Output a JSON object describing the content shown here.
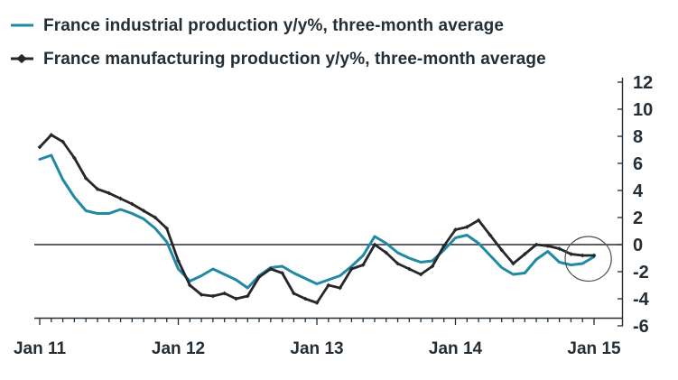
{
  "legend": {
    "items": [
      {
        "label": "France industrial production y/y%, three-month average",
        "color": "#2089a3",
        "marker": "line"
      },
      {
        "label": "France manufacturing production y/y%, three-month average",
        "color": "#26262b",
        "marker": "line-diamond"
      }
    ]
  },
  "chart_data": {
    "type": "line",
    "title": "",
    "xlabel": "",
    "ylabel": "",
    "frequency": "monthly",
    "x": [
      "2011-01",
      "2011-02",
      "2011-03",
      "2011-04",
      "2011-05",
      "2011-06",
      "2011-07",
      "2011-08",
      "2011-09",
      "2011-10",
      "2011-11",
      "2011-12",
      "2012-01",
      "2012-02",
      "2012-03",
      "2012-04",
      "2012-05",
      "2012-06",
      "2012-07",
      "2012-08",
      "2012-09",
      "2012-10",
      "2012-11",
      "2012-12",
      "2013-01",
      "2013-02",
      "2013-03",
      "2013-04",
      "2013-05",
      "2013-06",
      "2013-07",
      "2013-08",
      "2013-09",
      "2013-10",
      "2013-11",
      "2013-12",
      "2014-01",
      "2014-02",
      "2014-03",
      "2014-04",
      "2014-05",
      "2014-06",
      "2014-07",
      "2014-08",
      "2014-09",
      "2014-10",
      "2014-11",
      "2014-12",
      "2015-01"
    ],
    "x_tick_labels": [
      "Jan 11",
      "Jan 12",
      "Jan 13",
      "Jan 14",
      "Jan 15"
    ],
    "y_ticks": [
      12,
      10,
      8,
      6,
      4,
      2,
      0,
      -2,
      -4,
      -6
    ],
    "ylim": [
      -6,
      12
    ],
    "grid": "none (zero line only)",
    "legend_position": "top-left",
    "series": [
      {
        "name": "France industrial production y/y%, three-month average",
        "color": "#2089a3",
        "marker": "none",
        "values": [
          6.3,
          6.6,
          4.8,
          3.5,
          2.5,
          2.3,
          2.3,
          2.6,
          2.3,
          1.9,
          1.2,
          0.2,
          -1.8,
          -2.7,
          -2.3,
          -1.8,
          -2.2,
          -2.6,
          -3.2,
          -2.3,
          -1.7,
          -1.6,
          -2.1,
          -2.5,
          -2.9,
          -2.6,
          -2.3,
          -1.6,
          -0.8,
          0.6,
          0.1,
          -0.6,
          -1.0,
          -1.3,
          -1.2,
          -0.4,
          0.5,
          0.7,
          0.1,
          -0.8,
          -1.7,
          -2.2,
          -2.1,
          -1.1,
          -0.5,
          -1.3,
          -1.5,
          -1.4,
          -0.9
        ]
      },
      {
        "name": "France manufacturing production y/y%, three-month average",
        "color": "#26262b",
        "marker": "diamond",
        "values": [
          7.2,
          8.1,
          7.6,
          6.4,
          4.9,
          4.1,
          3.8,
          3.4,
          3.0,
          2.5,
          2.0,
          1.2,
          -1.2,
          -3.0,
          -3.7,
          -3.8,
          -3.6,
          -4.0,
          -3.8,
          -2.4,
          -1.8,
          -2.1,
          -3.6,
          -4.0,
          -4.3,
          -3.0,
          -3.2,
          -1.8,
          -1.5,
          0.0,
          -0.6,
          -1.4,
          -1.8,
          -2.2,
          -1.6,
          -0.1,
          1.1,
          1.3,
          1.8,
          0.7,
          -0.4,
          -1.4,
          -0.7,
          0.0,
          -0.1,
          -0.3,
          -0.7,
          -0.8,
          -0.8
        ]
      }
    ],
    "annotation": {
      "shape": "ellipse",
      "highlights": "latest months (late 2014 - Jan 2015) where both series converge around -1",
      "center_month_index": 47.5,
      "center_value": -1.05,
      "rx_months": 2.0,
      "ry_units": 1.65,
      "stroke_color": "#4a4f55"
    },
    "axis_color": "#232e36",
    "zero_line": true
  }
}
